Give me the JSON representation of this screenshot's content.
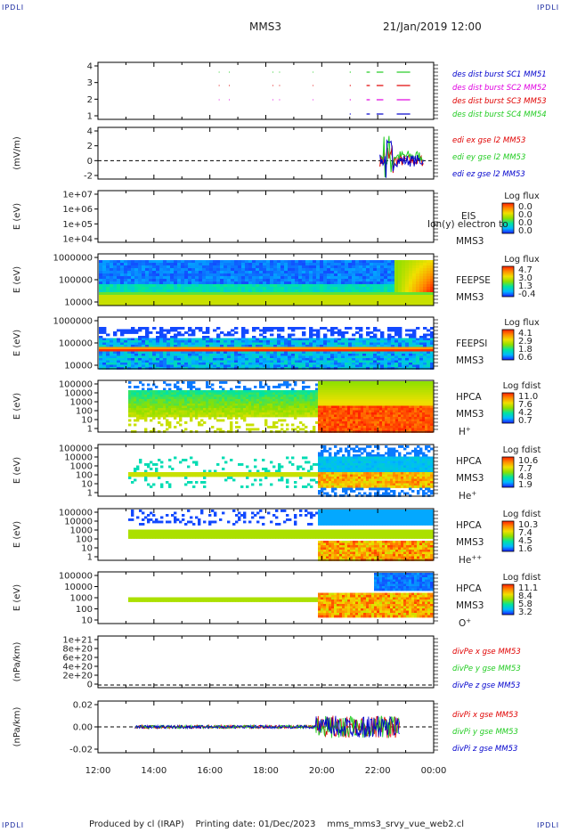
{
  "corner_label": "IPDLI",
  "header": {
    "title": "MMS3",
    "datetime": "21/Jan/2019 12:00"
  },
  "footer": {
    "text": "Produced by cl (IRAP)    Printing date: 01/Dec/2023    mms_mms3_srvy_vue_web2.cl"
  },
  "time_axis": {
    "ticks": [
      "12:00",
      "14:00",
      "16:00",
      "18:00",
      "20:00",
      "22:00",
      "00:00"
    ]
  },
  "colors": {
    "red": "#e00000",
    "green": "#22cc22",
    "blue": "#0000cc",
    "magenta": "#e000e0",
    "dark": "#cc0000"
  },
  "chart_data": [
    {
      "id": "p1",
      "type": "scatter",
      "ylabel": "",
      "yticks": [
        "4",
        "3",
        "2",
        "1"
      ],
      "series": [
        {
          "name": "des dist burst SC1 MM51",
          "color": "#0000cc"
        },
        {
          "name": "des dist burst SC2 MM52",
          "color": "#e000e0"
        },
        {
          "name": "des dist burst SC3 MM53",
          "color": "#e00000"
        },
        {
          "name": "des dist burst SC4 MM54",
          "color": "#22cc22"
        }
      ]
    },
    {
      "id": "p2",
      "type": "line",
      "ylabel": "(mV/m)",
      "yticks": [
        "4",
        "2",
        "0",
        "-2"
      ],
      "ylim": [
        -3,
        5
      ],
      "series": [
        {
          "name": "edi ex gse l2 MM53",
          "color": "#e00000"
        },
        {
          "name": "edi ey gse l2 MM53",
          "color": "#22cc22"
        },
        {
          "name": "edi ez gse l2 MM53",
          "color": "#0000cc"
        }
      ]
    },
    {
      "id": "p3",
      "type": "heatmap",
      "ylabel": "E (eV)",
      "yticks": [
        "1e+07",
        "1e+06",
        "1e+05",
        "1e+04"
      ],
      "instrument": "EIS",
      "overlay_text": "Ion(y) electron to",
      "spacecraft": "MMS3",
      "cbar_title": "Log flux",
      "cbar_ticks": [
        "0.0",
        "0.0",
        "0.0",
        "0.0"
      ]
    },
    {
      "id": "p4",
      "type": "heatmap",
      "ylabel": "E (eV)",
      "yticks": [
        "1000000",
        "100000",
        "10000"
      ],
      "instrument": "FEEPSE",
      "spacecraft": "MMS3",
      "cbar_title": "Log flux",
      "cbar_ticks": [
        "4.7",
        "3.0",
        "1.3",
        "-0.4"
      ]
    },
    {
      "id": "p5",
      "type": "heatmap",
      "ylabel": "E (eV)",
      "yticks": [
        "1000000",
        "100000",
        "10000"
      ],
      "instrument": "FEEPSI",
      "spacecraft": "MMS3",
      "cbar_title": "Log flux",
      "cbar_ticks": [
        "4.1",
        "2.9",
        "1.8",
        "0.6"
      ]
    },
    {
      "id": "p6",
      "type": "heatmap",
      "ylabel": "E (eV)",
      "yticks": [
        "100000",
        "10000",
        "1000",
        "100",
        "10",
        "1"
      ],
      "instrument": "HPCA",
      "spacecraft": "MMS3",
      "species": "H",
      "species_sup": "+",
      "cbar_title": "Log fdist",
      "cbar_ticks": [
        "11.0",
        "7.6",
        "4.2",
        "0.7"
      ]
    },
    {
      "id": "p7",
      "type": "heatmap",
      "ylabel": "E (eV)",
      "yticks": [
        "100000",
        "10000",
        "1000",
        "100",
        "10",
        "1"
      ],
      "instrument": "HPCA",
      "spacecraft": "MMS3",
      "species": "He",
      "species_sup": "+",
      "cbar_title": "Log fdist",
      "cbar_ticks": [
        "10.6",
        "7.7",
        "4.8",
        "1.9"
      ]
    },
    {
      "id": "p8",
      "type": "heatmap",
      "ylabel": "E (eV)",
      "yticks": [
        "100000",
        "10000",
        "1000",
        "100",
        "10",
        "1"
      ],
      "instrument": "HPCA",
      "spacecraft": "MMS3",
      "species": "He",
      "species_sup": "++",
      "cbar_title": "Log fdist",
      "cbar_ticks": [
        "10.3",
        "7.4",
        "4.5",
        "1.6"
      ]
    },
    {
      "id": "p9",
      "type": "heatmap",
      "ylabel": "E (eV)",
      "yticks": [
        "100000",
        "10000",
        "1000",
        "100",
        "10"
      ],
      "instrument": "HPCA",
      "spacecraft": "MMS3",
      "species": "O",
      "species_sup": "+",
      "cbar_title": "Log fdist",
      "cbar_ticks": [
        "11.1",
        "8.4",
        "5.8",
        "3.2"
      ]
    },
    {
      "id": "p10",
      "type": "line",
      "ylabel": "(nPa/km)",
      "yticks": [
        "1e+21",
        "8e+20",
        "6e+20",
        "4e+20",
        "2e+20",
        "0"
      ],
      "series": [
        {
          "name": "divPe x gse MM53",
          "color": "#e00000"
        },
        {
          "name": "divPe y gse MM53",
          "color": "#22cc22"
        },
        {
          "name": "divPe z gse MM53",
          "color": "#0000cc"
        }
      ]
    },
    {
      "id": "p11",
      "type": "line",
      "ylabel": "(nPa/km)",
      "yticks": [
        "0.02",
        "0.00",
        "-0.02"
      ],
      "ylim": [
        -0.035,
        0.03
      ],
      "series": [
        {
          "name": "divPi x gse MM53",
          "color": "#e00000"
        },
        {
          "name": "divPi y gse MM53",
          "color": "#22cc22"
        },
        {
          "name": "divPi z gse MM53",
          "color": "#0000cc"
        }
      ]
    }
  ]
}
